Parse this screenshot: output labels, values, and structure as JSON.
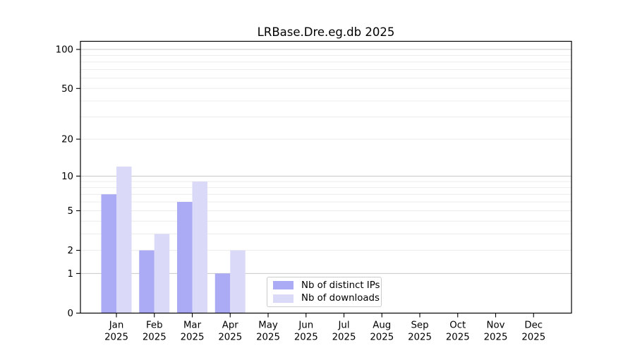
{
  "chart_data": {
    "type": "bar",
    "title": "LRBase.Dre.eg.db 2025",
    "scale": "log1p",
    "categories": [
      "Jan",
      "Feb",
      "Mar",
      "Apr",
      "May",
      "Jun",
      "Jul",
      "Aug",
      "Sep",
      "Oct",
      "Nov",
      "Dec"
    ],
    "year_label": "2025",
    "series": [
      {
        "name": "Nb of distinct IPs",
        "color": "#aaaaf5",
        "values": [
          7,
          2,
          6,
          1,
          0,
          0,
          0,
          0,
          0,
          0,
          0,
          0
        ]
      },
      {
        "name": "Nb of downloads",
        "color": "#dadaf8",
        "values": [
          12,
          3,
          9,
          2,
          0,
          0,
          0,
          0,
          0,
          0,
          0,
          0
        ]
      }
    ],
    "y_axis": {
      "ticks": [
        0,
        1,
        2,
        5,
        10,
        20,
        50,
        100
      ],
      "major_gridlines": [
        1,
        10,
        100
      ],
      "minor_gridlines": [
        2,
        3,
        4,
        5,
        6,
        7,
        8,
        9,
        20,
        30,
        40,
        50,
        60,
        70,
        80,
        90
      ],
      "max": 100
    },
    "legend_position": "inside-bottom-center",
    "grid": true
  },
  "colors": {
    "background": "#ffffff",
    "axis": "#000000",
    "major_grid": "#c8c8c8",
    "minor_grid": "#ececec",
    "legend_border": "#cccccc"
  }
}
